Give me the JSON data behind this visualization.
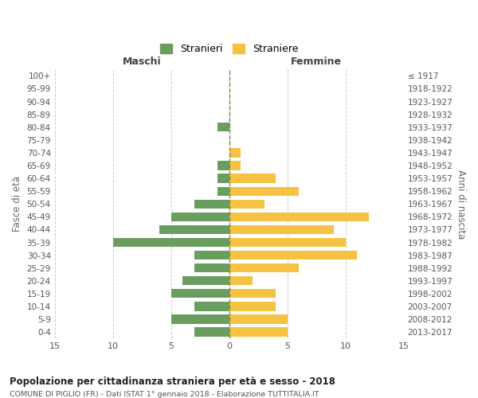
{
  "age_groups": [
    "100+",
    "95-99",
    "90-94",
    "85-89",
    "80-84",
    "75-79",
    "70-74",
    "65-69",
    "60-64",
    "55-59",
    "50-54",
    "45-49",
    "40-44",
    "35-39",
    "30-34",
    "25-29",
    "20-24",
    "15-19",
    "10-14",
    "5-9",
    "0-4"
  ],
  "birth_years": [
    "≤ 1917",
    "1918-1922",
    "1923-1927",
    "1928-1932",
    "1933-1937",
    "1938-1942",
    "1943-1947",
    "1948-1952",
    "1953-1957",
    "1958-1962",
    "1963-1967",
    "1968-1972",
    "1973-1977",
    "1978-1982",
    "1983-1987",
    "1988-1992",
    "1993-1997",
    "1998-2002",
    "2003-2007",
    "2008-2012",
    "2013-2017"
  ],
  "maschi": [
    0,
    0,
    0,
    0,
    1,
    0,
    0,
    1,
    1,
    1,
    3,
    5,
    6,
    10,
    3,
    3,
    4,
    5,
    3,
    5,
    3
  ],
  "femmine": [
    0,
    0,
    0,
    0,
    0,
    0,
    1,
    1,
    4,
    6,
    3,
    12,
    9,
    10,
    11,
    6,
    2,
    4,
    4,
    5,
    5
  ],
  "maschi_color": "#6a9e5f",
  "femmine_color": "#f5c242",
  "title": "Popolazione per cittadinanza straniera per età e sesso - 2018",
  "subtitle": "COMUNE DI PIGLIO (FR) - Dati ISTAT 1° gennaio 2018 - Elaborazione TUTTITALIA.IT",
  "ylabel_left": "Fasce di età",
  "ylabel_right": "Anni di nascita",
  "xlabel_left": "Maschi",
  "xlabel_right": "Femmine",
  "legend_maschi": "Stranieri",
  "legend_femmine": "Straniere",
  "xlim": 15,
  "background_color": "#ffffff",
  "grid_color": "#cccccc"
}
